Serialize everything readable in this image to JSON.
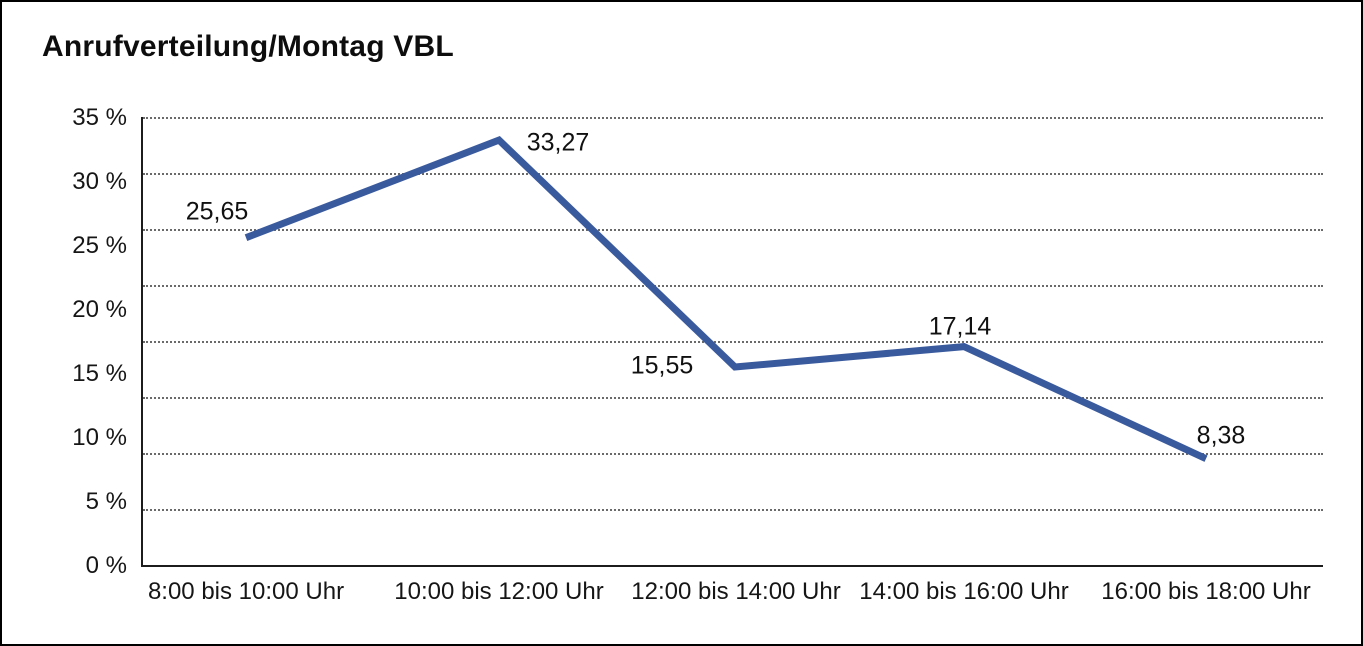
{
  "window": {
    "title_label": "Anrufverteilung/Montag VBL"
  },
  "chart_data": {
    "type": "line",
    "title": "Anrufverteilung/Montag VBL",
    "categories": [
      "8:00 bis 10:00 Uhr",
      "10:00 bis 12:00 Uhr",
      "12:00 bis 14:00 Uhr",
      "14:00 bis 16:00 Uhr",
      "16:00 bis 18:00 Uhr"
    ],
    "values": [
      25.65,
      33.27,
      15.55,
      17.14,
      8.38
    ],
    "point_labels": [
      "25,65",
      "33,27",
      "15,55",
      "17,14",
      "8,38"
    ],
    "ytick_labels": [
      "35 %",
      "30 %",
      "25 %",
      "20 %",
      "15 %",
      "10 %",
      "5 %",
      "0 %"
    ],
    "ylim": [
      0,
      35
    ],
    "xlabel": "",
    "ylabel": "",
    "legend": "none",
    "grid": "horizontal-dotted",
    "line_color": "#3a5a9e",
    "axis_color": "#1c1c1c"
  }
}
